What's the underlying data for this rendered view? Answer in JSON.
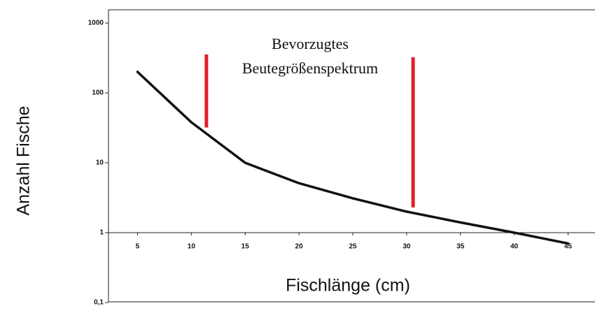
{
  "chart_data": {
    "type": "line",
    "x_label": "Fischlänge (cm)",
    "y_label": "Anzahl Fische",
    "annotation": [
      "Bevorzugtes",
      "Beutegrößenspektrum"
    ],
    "x": [
      5,
      10,
      15,
      20,
      25,
      30,
      35,
      40,
      45
    ],
    "series": [
      {
        "color": "#111111",
        "values": [
          200,
          38,
          10,
          5.1,
          3.1,
          2.0,
          1.4,
          1.0,
          0.7
        ]
      }
    ],
    "markers": [
      {
        "x": 11.4,
        "y": [
          32,
          355
        ],
        "color": "#e0202a"
      },
      {
        "x": 30.6,
        "y": [
          2.3,
          324
        ],
        "color": "#e0202a"
      }
    ],
    "xlim": [
      2.5,
      47.5
    ],
    "xticks": [
      5,
      10,
      15,
      20,
      25,
      30,
      35,
      40,
      45
    ],
    "ylim": [
      0.1,
      1000
    ],
    "yticks": [
      {
        "value": 0.1,
        "label": "0,1"
      },
      1,
      10,
      100,
      1000
    ],
    "log_y": true,
    "x_axis_at": 1,
    "grid": false
  }
}
